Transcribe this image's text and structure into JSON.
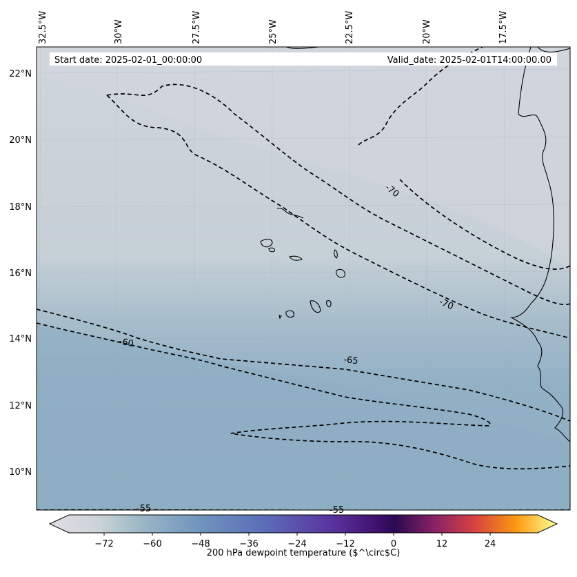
{
  "header": {
    "start_date": "Start date: 2025-02-01_00:00:00",
    "valid_date": "Valid_date: 2025-02-01T14:00:00.00"
  },
  "map": {
    "lon_labels": [
      "32.5°W",
      "30°W",
      "27.5°W",
      "25°W",
      "22.5°W",
      "20°W",
      "17.5°W"
    ],
    "lat_labels": [
      "22°N",
      "20°N",
      "18°N",
      "16°N",
      "14°N",
      "12°N",
      "10°N"
    ],
    "contour_labels": [
      {
        "text": "-70"
      },
      {
        "text": "-70"
      },
      {
        "text": "-60"
      },
      {
        "text": "-65"
      },
      {
        "text": "-55"
      },
      {
        "text": "-55"
      }
    ]
  },
  "colorbar": {
    "label": "200 hPa dewpoint temperature ($^\\circ$C)",
    "ticks": [
      "−72",
      "−60",
      "−48",
      "−36",
      "−24",
      "−12",
      "0",
      "12",
      "24"
    ],
    "colors": {
      "low": "#e2dce3",
      "mid": "#5e86ba",
      "purple": "#5a2d8e",
      "dark": "#2a0a52",
      "high": "#ffff99"
    }
  }
}
